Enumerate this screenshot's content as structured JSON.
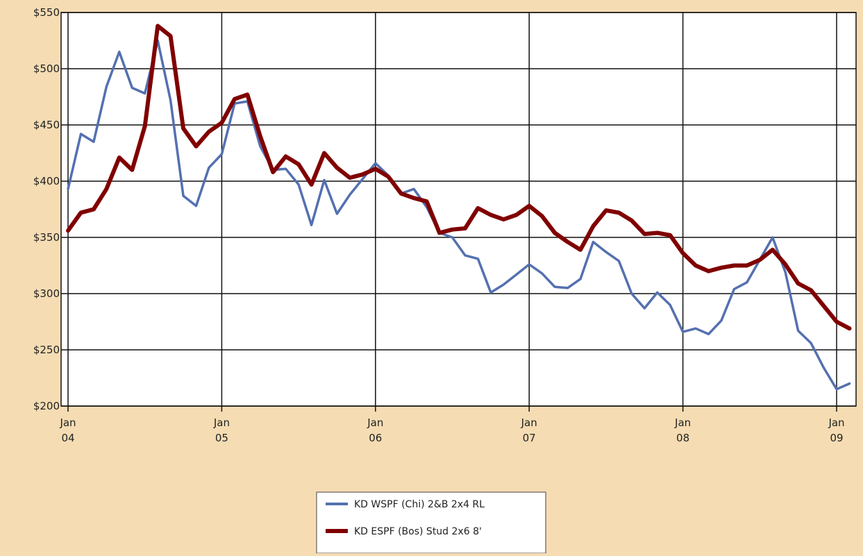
{
  "chart_data": {
    "type": "line",
    "title": "",
    "xlabel": "",
    "ylabel": "",
    "ylim": [
      200,
      550
    ],
    "yticks": [
      {
        "value": 550,
        "label": "$550"
      },
      {
        "value": 500,
        "label": "$500"
      },
      {
        "value": 450,
        "label": "$450"
      },
      {
        "value": 400,
        "label": "$400"
      },
      {
        "value": 350,
        "label": "$350"
      },
      {
        "value": 300,
        "label": "$300"
      },
      {
        "value": 250,
        "label": "$250"
      },
      {
        "value": 200,
        "label": "$200"
      }
    ],
    "xticks": [
      {
        "month": 0,
        "label1": "Jan",
        "label2": "04"
      },
      {
        "month": 12,
        "label1": "Jan",
        "label2": "05"
      },
      {
        "month": 24,
        "label1": "Jan",
        "label2": "06"
      },
      {
        "month": 36,
        "label1": "Jan",
        "label2": "07"
      },
      {
        "month": 48,
        "label1": "Jan",
        "label2": "08"
      },
      {
        "month": 60,
        "label1": "Jan",
        "label2": "09"
      }
    ],
    "x_start": "Jan 2004",
    "grid": true,
    "legend_position": "bottom-center",
    "series": [
      {
        "name": "KD WSPF (Chi) 2&B 2x4 RL",
        "color": "#5470b0",
        "values": [
          393,
          442,
          435,
          484,
          515,
          483,
          478,
          525,
          472,
          387,
          378,
          412,
          424,
          469,
          471,
          431,
          410,
          411,
          397,
          361,
          401,
          371,
          388,
          402,
          416,
          405,
          389,
          393,
          377,
          354,
          350,
          334,
          331,
          301,
          308,
          317,
          326,
          318,
          306,
          305,
          313,
          346,
          337,
          329,
          300,
          287,
          301,
          290,
          266,
          269,
          264,
          276,
          304,
          310,
          330,
          350,
          319,
          267,
          256,
          234,
          215,
          220
        ]
      },
      {
        "name": "KD ESPF (Bos) Stud 2x6 8'",
        "color": "#800000",
        "values": [
          356,
          372,
          375,
          393,
          421,
          410,
          449,
          538,
          529,
          447,
          431,
          444,
          452,
          473,
          477,
          440,
          408,
          422,
          415,
          397,
          425,
          412,
          403,
          406,
          411,
          404,
          389,
          385,
          382,
          354,
          357,
          358,
          376,
          370,
          366,
          370,
          378,
          369,
          354,
          346,
          339,
          360,
          374,
          372,
          365,
          353,
          354,
          352,
          336,
          325,
          320,
          323,
          325,
          325,
          330,
          339,
          326,
          309,
          303,
          289,
          275,
          269
        ]
      }
    ]
  }
}
